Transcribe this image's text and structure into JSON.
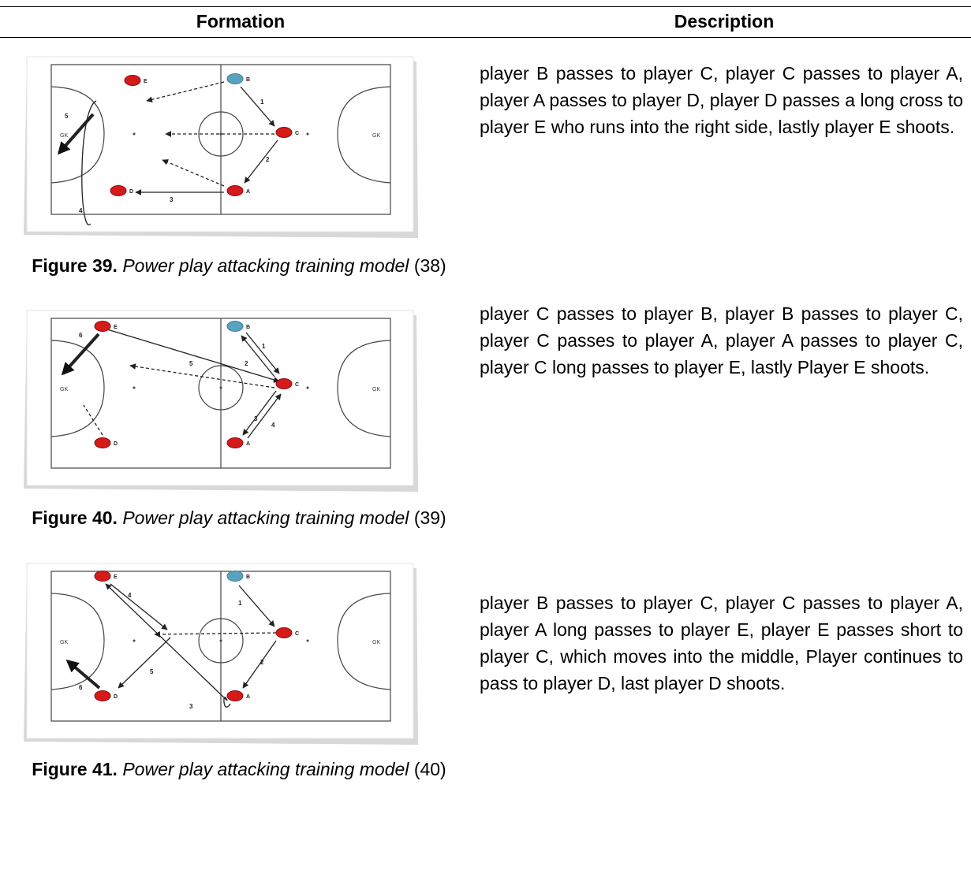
{
  "table": {
    "headers": [
      "Formation",
      "Description"
    ],
    "rows": [
      {
        "figure_label": "Figure 39.",
        "figure_title": "Power play attacking training model",
        "figure_ref": "(38)",
        "description": "player B passes to player C, player C passes to player A, player A passes to player D, player D passes a long cross to player E who runs into the right side, lastly player E shoots.",
        "diagram": {
          "players": [
            "E",
            "B",
            "C",
            "A",
            "D"
          ],
          "goalkeepers": [
            "GK",
            "GK"
          ],
          "steps": [
            "1",
            "2",
            "3",
            "4",
            "5"
          ]
        }
      },
      {
        "figure_label": "Figure 40.",
        "figure_title": "Power play attacking training model",
        "figure_ref": "(39)",
        "description": "player C passes to player B, player B passes to player C, player C passes to player A, player A passes to player C, player C long passes to player E, lastly Player E shoots.",
        "diagram": {
          "players": [
            "E",
            "B",
            "C",
            "A",
            "D"
          ],
          "goalkeepers": [
            "GK",
            "GK"
          ],
          "steps": [
            "1",
            "2",
            "3",
            "4",
            "5",
            "6"
          ]
        }
      },
      {
        "figure_label": "Figure 41.",
        "figure_title": "Power play attacking training model",
        "figure_ref": "(40)",
        "description": "player B passes to player C, player C passes to player A, player A long passes to player E, player E passes short to player C, which moves into the middle, Player continues to pass to player D, last player D shoots.",
        "diagram": {
          "players": [
            "E",
            "B",
            "C",
            "A",
            "D"
          ],
          "goalkeepers": [
            "GK",
            "GK"
          ],
          "steps": [
            "1",
            "2",
            "3",
            "4",
            "5",
            "6"
          ]
        }
      }
    ]
  }
}
